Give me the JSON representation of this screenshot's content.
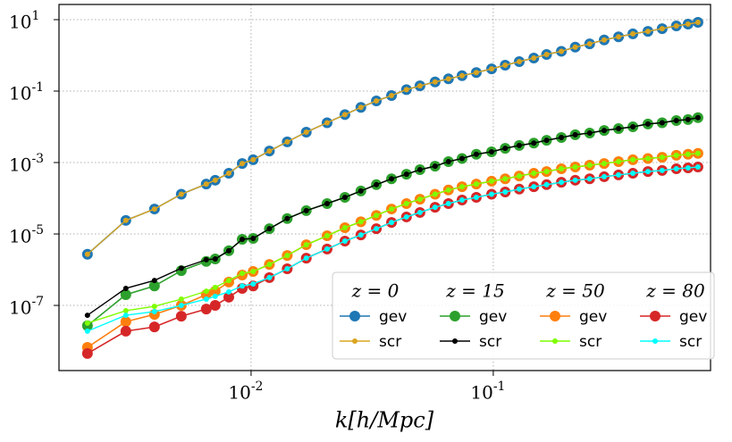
{
  "chart_data": {
    "type": "line",
    "x_label": "k[h/Mpc]",
    "log_x": true,
    "log_y": true,
    "grid": true,
    "legend_position": "lower right",
    "xlim": [
      0.00161,
      0.789
    ],
    "ylim": [
      1.5e-09,
      26.6
    ],
    "xticks": [
      {
        "value": 0.01,
        "label": "10^-2"
      },
      {
        "value": 0.1,
        "label": "10^-1"
      }
    ],
    "yticks": [
      {
        "value": 1e-07,
        "label": "10^-7"
      },
      {
        "value": 1e-05,
        "label": "10^-5"
      },
      {
        "value": 0.001,
        "label": "10^-3"
      },
      {
        "value": 0.1,
        "label": "10^-1"
      },
      {
        "value": 10,
        "label": "10^1"
      }
    ],
    "legend_groups": [
      "z = 0",
      "z = 15",
      "z = 50",
      "z = 80"
    ],
    "x": [
      0.00211,
      0.00304,
      0.00399,
      0.00515,
      0.00653,
      0.00711,
      0.00809,
      0.00919,
      0.0102,
      0.0119,
      0.0141,
      0.0169,
      0.0206,
      0.0244,
      0.0284,
      0.0329,
      0.038,
      0.0438,
      0.0498,
      0.0575,
      0.0653,
      0.0743,
      0.0851,
      0.0984,
      0.112,
      0.128,
      0.147,
      0.166,
      0.191,
      0.218,
      0.25,
      0.287,
      0.329,
      0.377,
      0.435,
      0.498,
      0.57,
      0.637,
      0.7
    ],
    "series": [
      {
        "name": "gev",
        "color": "#1f77b4",
        "values": [
          2.7e-06,
          2.4e-05,
          5e-05,
          0.00013,
          0.00025,
          0.00032,
          0.0005,
          0.00094,
          0.0012,
          0.0021,
          0.0038,
          0.0071,
          0.013,
          0.022,
          0.035,
          0.053,
          0.075,
          0.11,
          0.14,
          0.18,
          0.22,
          0.27,
          0.33,
          0.42,
          0.53,
          0.67,
          0.84,
          1.06,
          1.3,
          1.7,
          2.1,
          2.7,
          3.3,
          4.0,
          4.7,
          5.6,
          6.7,
          7.5,
          8.4
        ]
      },
      {
        "name": "scr",
        "color": "#daa520",
        "values": [
          2.7e-06,
          2.4e-05,
          5e-05,
          0.00013,
          0.00025,
          0.00032,
          0.0005,
          0.00094,
          0.0012,
          0.0021,
          0.0038,
          0.0071,
          0.013,
          0.022,
          0.035,
          0.053,
          0.075,
          0.11,
          0.14,
          0.18,
          0.22,
          0.27,
          0.33,
          0.42,
          0.53,
          0.67,
          0.84,
          1.06,
          1.3,
          1.7,
          2.1,
          2.7,
          3.3,
          4.0,
          4.7,
          5.6,
          6.7,
          7.5,
          8.4
        ]
      },
      {
        "name": "gev",
        "color": "#2ca02c",
        "values": [
          2.7e-08,
          2e-07,
          3.5e-07,
          9.4e-07,
          1.7e-06,
          2e-06,
          3.4e-06,
          7.1e-06,
          7.5e-06,
          1.4e-05,
          2.7e-05,
          4.5e-05,
          7.1e-05,
          0.000106,
          0.00016,
          0.00024,
          0.00035,
          0.00047,
          0.00063,
          0.00079,
          0.00106,
          0.0013,
          0.0017,
          0.002,
          0.0025,
          0.003,
          0.0035,
          0.0042,
          0.005,
          0.006,
          0.0067,
          0.0079,
          0.0089,
          0.01,
          0.012,
          0.013,
          0.015,
          0.016,
          0.018
        ]
      },
      {
        "name": "scr",
        "color": "#000000",
        "values": [
          5.3e-08,
          3e-07,
          5e-07,
          1.1e-06,
          1.9e-06,
          2e-06,
          3.4e-06,
          7.1e-06,
          7.5e-06,
          1.4e-05,
          2.7e-05,
          4.5e-05,
          7.1e-05,
          0.000106,
          0.00016,
          0.00024,
          0.00035,
          0.00047,
          0.00063,
          0.00079,
          0.00106,
          0.0013,
          0.0017,
          0.002,
          0.0025,
          0.003,
          0.0035,
          0.0042,
          0.005,
          0.006,
          0.0067,
          0.0079,
          0.0089,
          0.01,
          0.012,
          0.013,
          0.015,
          0.016,
          0.018
        ]
      },
      {
        "name": "gev",
        "color": "#ff7f0e",
        "values": [
          6.7e-09,
          3.5e-08,
          5.6e-08,
          1e-07,
          2e-07,
          2.5e-07,
          4.5e-07,
          7.1e-07,
          8.9e-07,
          1.4e-06,
          2.5e-06,
          5e-06,
          8.9e-06,
          1.5e-05,
          2.2e-05,
          3.3e-05,
          5e-05,
          7.1e-05,
          9.4e-05,
          0.00013,
          0.00017,
          0.00021,
          0.00025,
          0.0003,
          0.00035,
          0.00042,
          0.0005,
          0.00056,
          0.00067,
          0.00075,
          0.00084,
          0.00094,
          0.00106,
          0.0012,
          0.0013,
          0.0014,
          0.0016,
          0.0017,
          0.0018
        ]
      },
      {
        "name": "scr",
        "color": "#7fff00",
        "values": [
          3.2e-08,
          7.1e-08,
          9.4e-08,
          1.5e-07,
          2.5e-07,
          3.2e-07,
          5e-07,
          7.9e-07,
          8.9e-07,
          1.4e-06,
          2.5e-06,
          5e-06,
          8.9e-06,
          1.5e-05,
          2.2e-05,
          3.3e-05,
          5e-05,
          7.1e-05,
          9.4e-05,
          0.00013,
          0.00017,
          0.00021,
          0.00025,
          0.0003,
          0.00035,
          0.00042,
          0.0005,
          0.00056,
          0.00067,
          0.00075,
          0.00084,
          0.00094,
          0.00106,
          0.0012,
          0.0013,
          0.0014,
          0.0016,
          0.0017,
          0.0018
        ]
      },
      {
        "name": "gev",
        "color": "#d62728",
        "values": [
          4.5e-09,
          1.9e-08,
          2.5e-08,
          5e-08,
          7.9e-08,
          1e-07,
          1.7e-07,
          3e-07,
          3.5e-07,
          6e-07,
          1.06e-06,
          2.1e-06,
          3.8e-06,
          6.3e-06,
          9.4e-06,
          1.4e-05,
          2.1e-05,
          3e-05,
          4e-05,
          5.6e-05,
          7.1e-05,
          8.9e-05,
          0.000106,
          0.00013,
          0.00015,
          0.00018,
          0.00021,
          0.00024,
          0.00028,
          0.00032,
          0.00035,
          0.0004,
          0.00045,
          0.0005,
          0.00056,
          0.0006,
          0.00067,
          0.00071,
          0.00075
        ]
      },
      {
        "name": "scr",
        "color": "#00ffff",
        "values": [
          1.9e-08,
          5.3e-08,
          6.7e-08,
          1e-07,
          1.5e-07,
          1.8e-07,
          2.4e-07,
          3.5e-07,
          4e-07,
          6e-07,
          1.06e-06,
          2.1e-06,
          3.8e-06,
          6.3e-06,
          9.4e-06,
          1.4e-05,
          2.1e-05,
          3e-05,
          4e-05,
          5.6e-05,
          7.1e-05,
          8.9e-05,
          0.000106,
          0.00013,
          0.00015,
          0.00018,
          0.00021,
          0.00024,
          0.00028,
          0.00032,
          0.00035,
          0.0004,
          0.00045,
          0.0005,
          0.00056,
          0.0006,
          0.00067,
          0.00071,
          0.00075
        ]
      }
    ]
  }
}
